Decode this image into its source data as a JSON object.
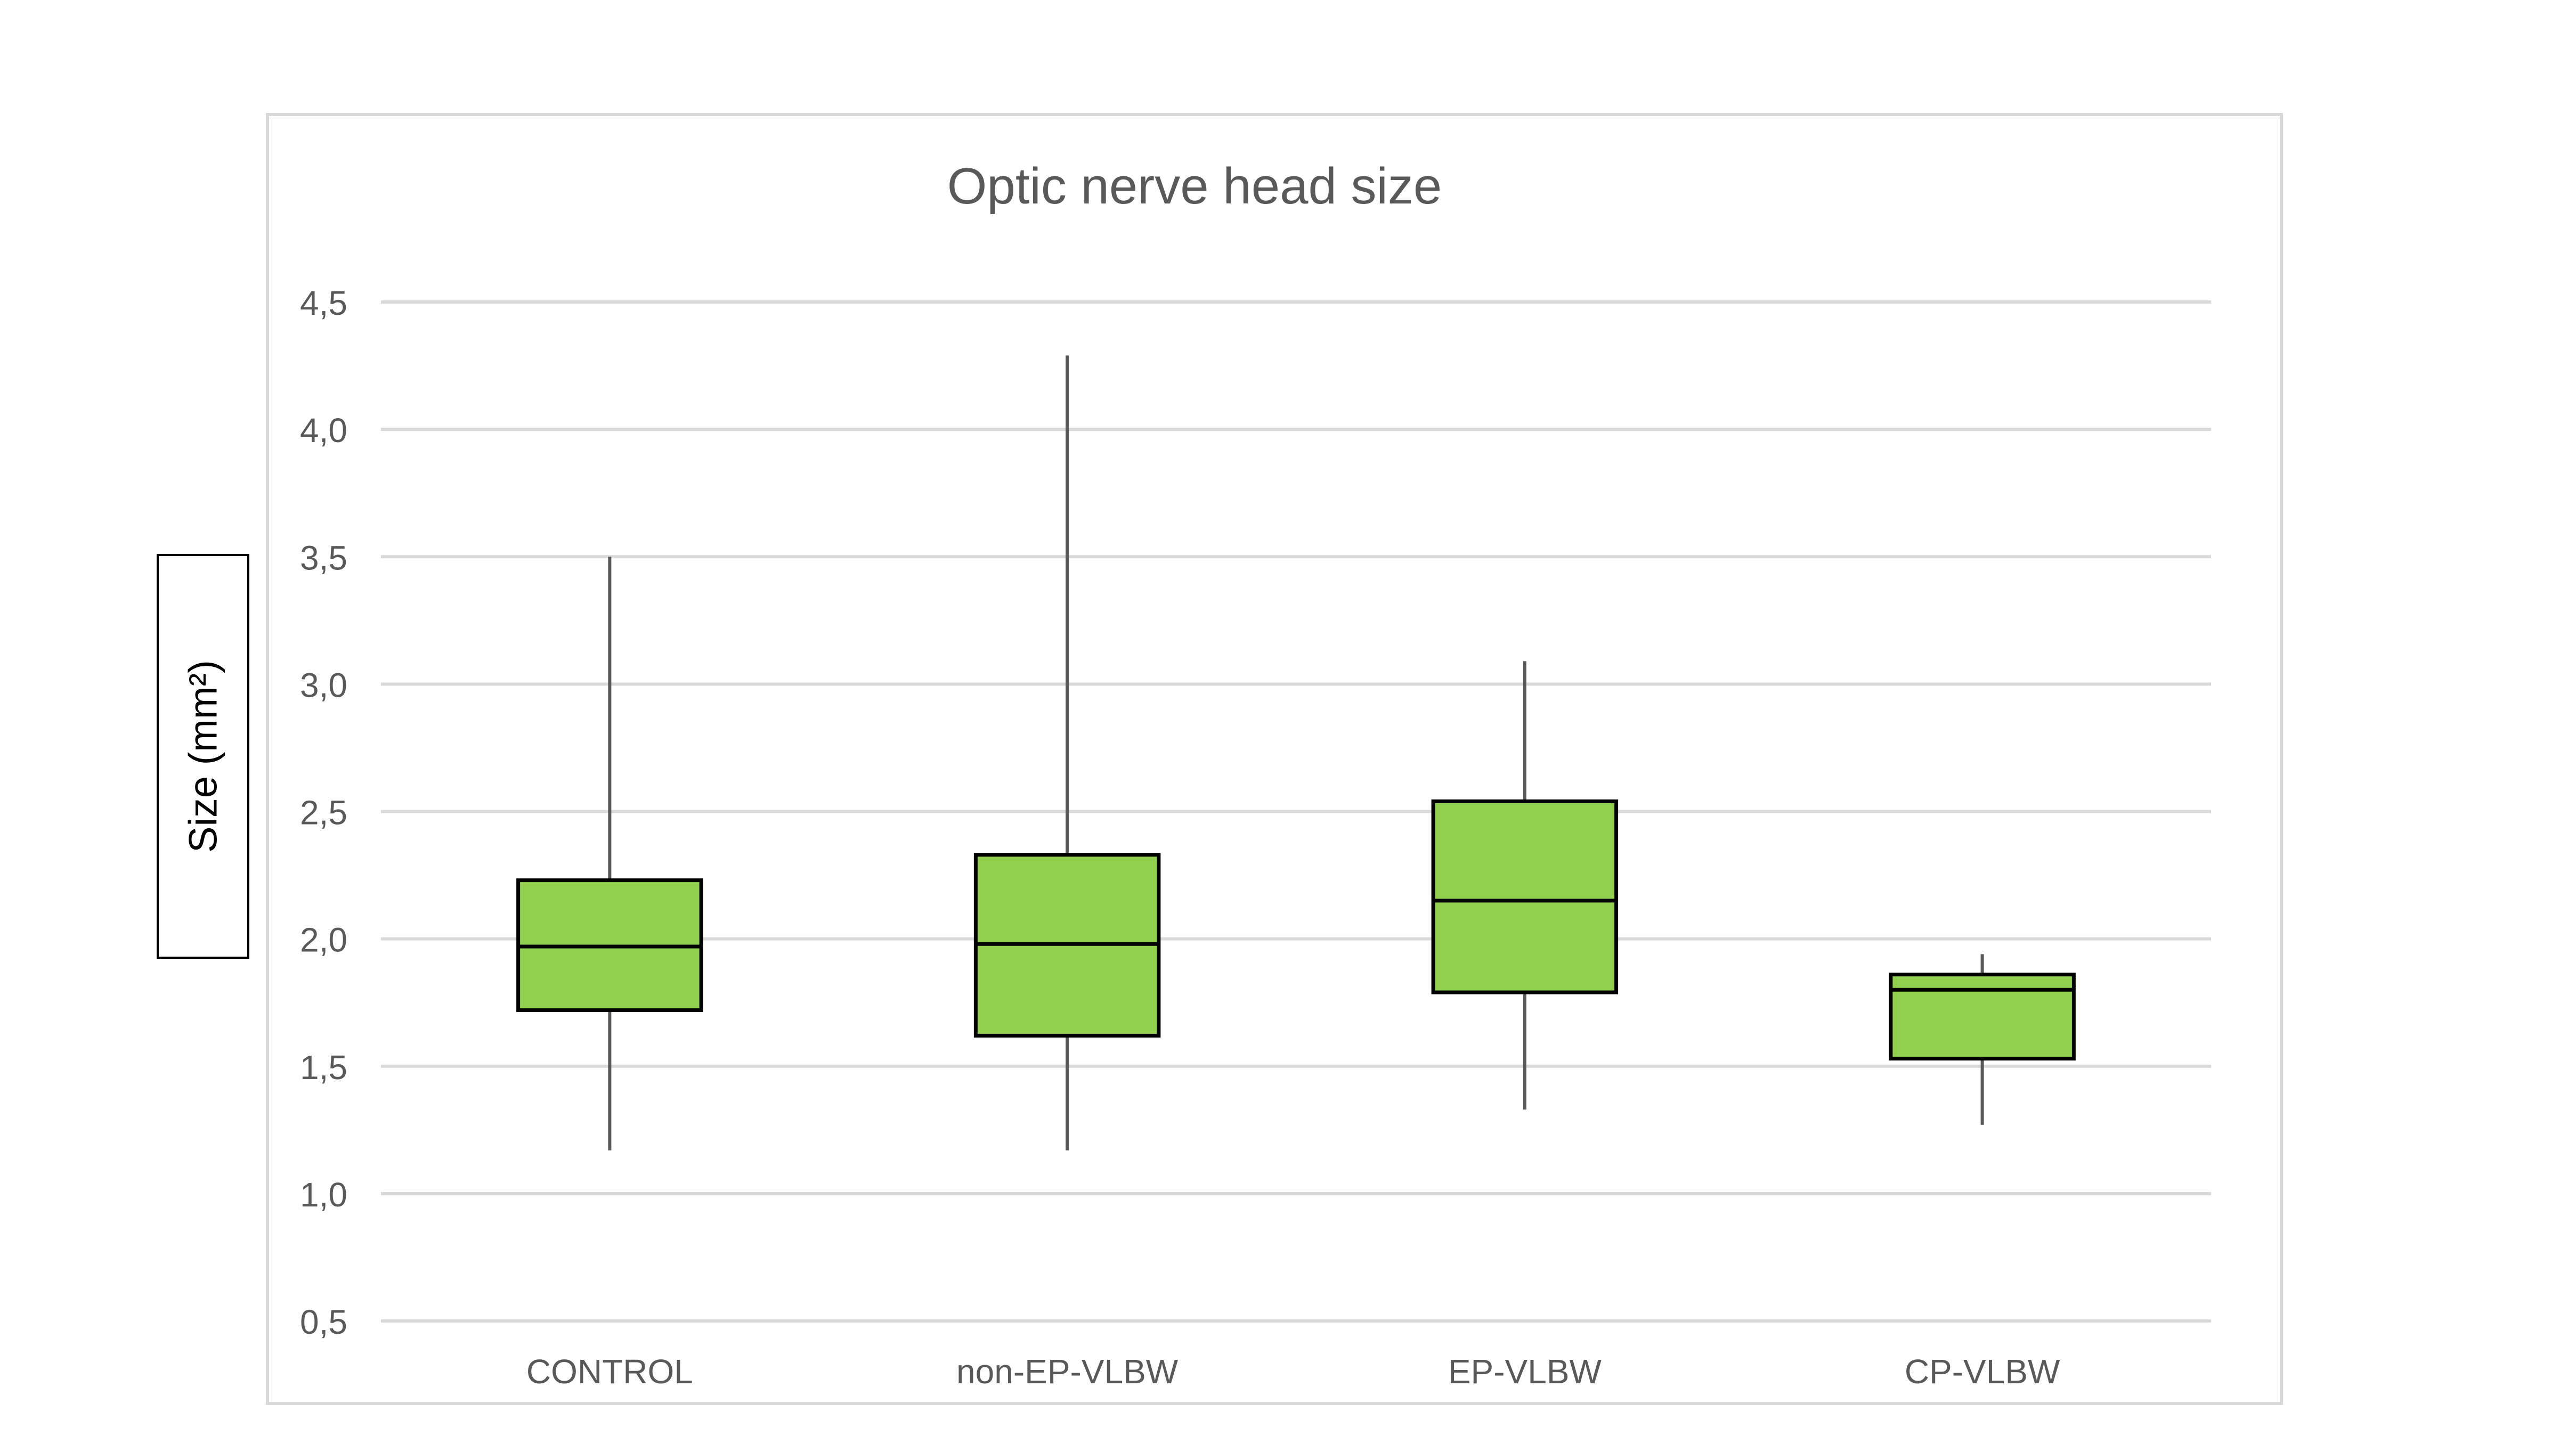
{
  "chart_data": {
    "type": "boxplot",
    "title": "Optic nerve head size",
    "ylabel": "Size  (mm²)",
    "xlabel": "",
    "ylim": [
      0.5,
      4.5
    ],
    "ytick_step": 0.5,
    "ytick_labels": [
      "0,5",
      "1,0",
      "1,5",
      "2,0",
      "2,5",
      "3,0",
      "3,5",
      "4,0",
      "4,5"
    ],
    "grid": true,
    "legend": "none",
    "box_color": "#92d050",
    "edge_color": "#000000",
    "whisker_color": "#595959",
    "grid_color": "#d9d9d9",
    "categories": [
      "CONTROL",
      "non-EP-VLBW",
      "EP-VLBW",
      "CP-VLBW"
    ],
    "boxes": [
      {
        "category": "CONTROL",
        "min": 1.17,
        "q1": 1.72,
        "median": 1.97,
        "q3": 2.23,
        "max": 3.5
      },
      {
        "category": "non-EP-VLBW",
        "min": 1.17,
        "q1": 1.62,
        "median": 1.98,
        "q3": 2.33,
        "max": 4.29
      },
      {
        "category": "EP-VLBW",
        "min": 1.33,
        "q1": 1.79,
        "median": 2.15,
        "q3": 2.54,
        "max": 3.09
      },
      {
        "category": "CP-VLBW",
        "min": 1.27,
        "q1": 1.53,
        "median": 1.8,
        "q3": 1.86,
        "max": 1.94
      }
    ]
  }
}
